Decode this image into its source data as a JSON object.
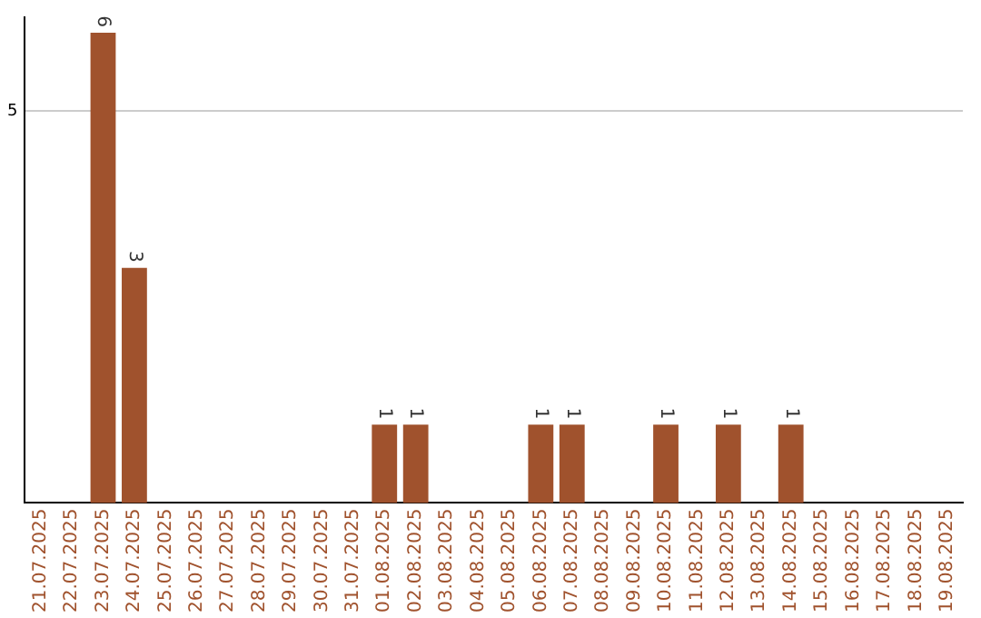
{
  "chart_data": {
    "type": "bar",
    "categories": [
      "21.07.2025",
      "22.07.2025",
      "23.07.2025",
      "24.07.2025",
      "25.07.2025",
      "26.07.2025",
      "27.07.2025",
      "28.07.2025",
      "29.07.2025",
      "30.07.2025",
      "31.07.2025",
      "01.08.2025",
      "02.08.2025",
      "03.08.2025",
      "04.08.2025",
      "05.08.2025",
      "06.08.2025",
      "07.08.2025",
      "08.08.2025",
      "09.08.2025",
      "10.08.2025",
      "11.08.2025",
      "12.08.2025",
      "13.08.2025",
      "14.08.2025",
      "15.08.2025",
      "16.08.2025",
      "17.08.2025",
      "18.08.2025",
      "19.08.2025"
    ],
    "values": [
      0,
      0,
      6,
      3,
      0,
      0,
      0,
      0,
      0,
      0,
      0,
      1,
      1,
      0,
      0,
      0,
      1,
      1,
      0,
      0,
      1,
      0,
      1,
      0,
      1,
      0,
      0,
      0,
      0,
      0
    ],
    "value_labels": [
      null,
      null,
      "6",
      "3",
      null,
      null,
      null,
      null,
      null,
      null,
      null,
      "1",
      "1",
      null,
      null,
      null,
      "1",
      "1",
      null,
      null,
      "1",
      null,
      "1",
      null,
      "1",
      null,
      null,
      null,
      null,
      null
    ],
    "color": "#a0522d",
    "ylim": [
      0,
      6.2
    ],
    "yticks": [
      5
    ],
    "grid": "y",
    "legend": false
  }
}
